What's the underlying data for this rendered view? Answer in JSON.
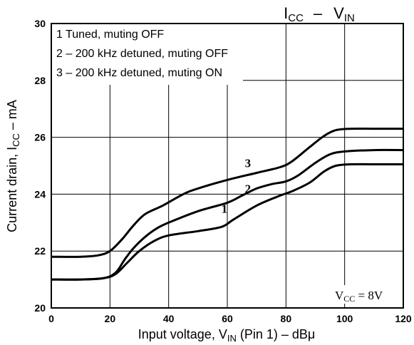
{
  "chart_data": {
    "type": "line",
    "title": "ICC  –  VIN",
    "title_parts": {
      "t1": "I",
      "t1sub": "CC",
      "dash": "–",
      "t2": "V",
      "t2sub": "IN"
    },
    "xlabel_parts": {
      "pre": "Input voltage, V",
      "sub": "IN",
      "post": " (Pin 1) – dBμ"
    },
    "ylabel_parts": {
      "pre": "Current drain, I",
      "sub": "CC",
      "post": " – mA"
    },
    "xlim": [
      0,
      120
    ],
    "ylim": [
      20,
      30
    ],
    "x_ticks": [
      0,
      20,
      40,
      60,
      80,
      100,
      120
    ],
    "x_tick_labels": [
      "0",
      "20",
      "40",
      "60",
      "80",
      "100",
      "120"
    ],
    "y_ticks": [
      20,
      22,
      24,
      26,
      28,
      30
    ],
    "y_tick_labels": [
      "20",
      "22",
      "24",
      "26",
      "28",
      "30"
    ],
    "grid": true,
    "legend_position": "top-left",
    "legend": [
      "1 Tuned, muting OFF",
      "2 – 200 kHz detuned, muting OFF",
      "3 – 200 kHz detuned, muting ON"
    ],
    "annotation": {
      "pre": "V",
      "sub": "CC",
      "post": " = 8V"
    },
    "series": [
      {
        "name": "1",
        "x": [
          0,
          10,
          18,
          22,
          26,
          30,
          35,
          40,
          50,
          58,
          62,
          70,
          78,
          82,
          88,
          93,
          97,
          102,
          110,
          120
        ],
        "y": [
          21.0,
          21.0,
          21.05,
          21.2,
          21.6,
          22.0,
          22.35,
          22.55,
          22.7,
          22.85,
          23.1,
          23.6,
          23.95,
          24.1,
          24.4,
          24.8,
          25.0,
          25.05,
          25.05,
          25.05
        ]
      },
      {
        "name": "2",
        "x": [
          0,
          10,
          18,
          22,
          25,
          28,
          32,
          36,
          40,
          50,
          60,
          65,
          70,
          75,
          80,
          84,
          90,
          95,
          100,
          110,
          120
        ],
        "y": [
          21.0,
          21.0,
          21.05,
          21.25,
          21.7,
          22.1,
          22.5,
          22.8,
          23.0,
          23.4,
          23.7,
          23.95,
          24.2,
          24.35,
          24.45,
          24.65,
          25.1,
          25.4,
          25.5,
          25.55,
          25.55
        ]
      },
      {
        "name": "3",
        "x": [
          0,
          10,
          16,
          20,
          24,
          28,
          32,
          38,
          45,
          50,
          60,
          70,
          78,
          82,
          88,
          93,
          97,
          102,
          110,
          120
        ],
        "y": [
          21.8,
          21.8,
          21.85,
          22.0,
          22.4,
          22.9,
          23.3,
          23.6,
          24.0,
          24.2,
          24.5,
          24.75,
          24.95,
          25.15,
          25.65,
          26.05,
          26.25,
          26.3,
          26.3,
          26.3
        ]
      }
    ],
    "curve_labels": [
      {
        "text": "1",
        "x": 59,
        "y": 23.35
      },
      {
        "text": "2",
        "x": 67,
        "y": 24.05
      },
      {
        "text": "3",
        "x": 67,
        "y": 24.95
      }
    ]
  }
}
